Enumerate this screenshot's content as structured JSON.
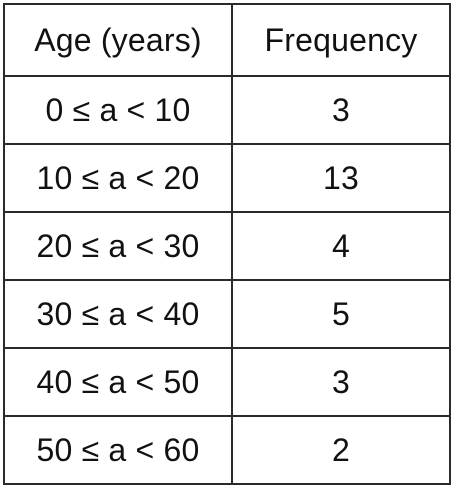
{
  "table": {
    "headers": [
      "Age (years)",
      "Frequency"
    ],
    "rows": [
      {
        "age": "0 ≤ a < 10",
        "frequency": "3"
      },
      {
        "age": "10 ≤ a < 20",
        "frequency": "13"
      },
      {
        "age": "20 ≤ a < 30",
        "frequency": "4"
      },
      {
        "age": "30 ≤ a < 40",
        "frequency": "5"
      },
      {
        "age": "40 ≤ a < 50",
        "frequency": "3"
      },
      {
        "age": "50 ≤ a < 60",
        "frequency": "2"
      }
    ]
  },
  "chart_data": {
    "type": "table",
    "columns": [
      "Age (years)",
      "Frequency"
    ],
    "rows": [
      [
        "0 ≤ a < 10",
        3
      ],
      [
        "10 ≤ a < 20",
        13
      ],
      [
        "20 ≤ a < 30",
        4
      ],
      [
        "30 ≤ a < 40",
        5
      ],
      [
        "40 ≤ a < 50",
        3
      ],
      [
        "50 ≤ a < 60",
        2
      ]
    ]
  }
}
